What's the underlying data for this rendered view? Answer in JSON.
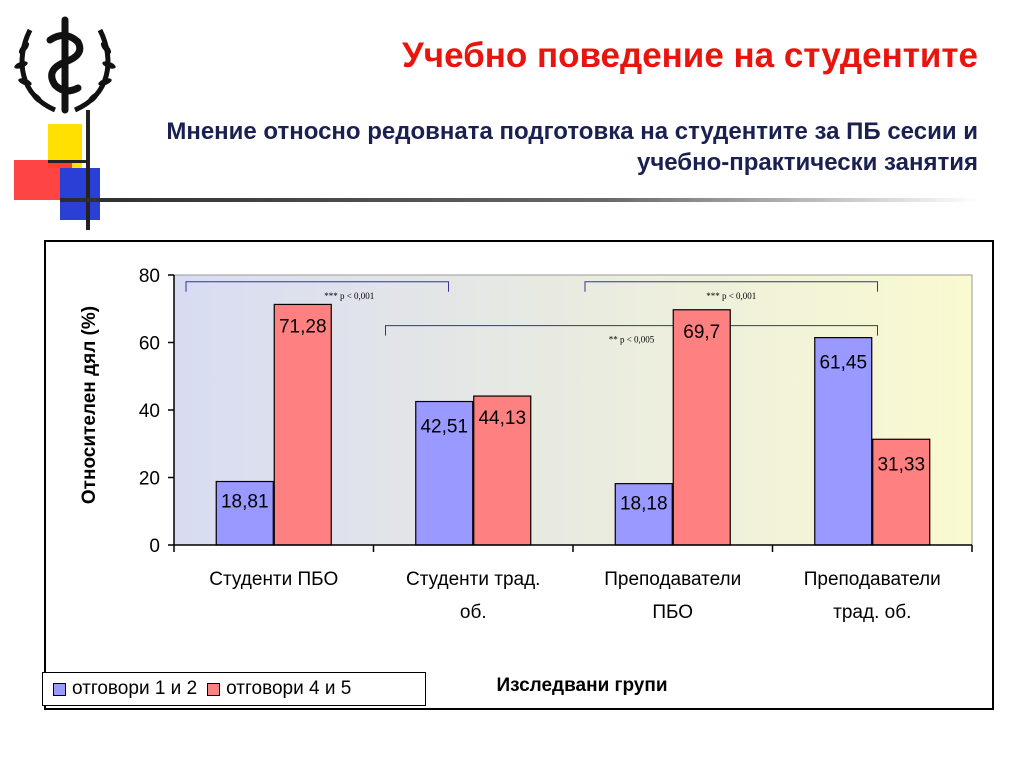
{
  "slide": {
    "title": "Учебно поведение на студентите",
    "subtitle": "Мнение относно редовната подготовка на студентите за ПБ сесии и учебно-практически занятия"
  },
  "colors": {
    "title": "#e8140e",
    "subtitle": "#1a2050",
    "series1": "#9999ff",
    "series2": "#ff8080",
    "plot_bg_left": "#d8dcf2",
    "plot_bg_right": "#fafad0",
    "bracket": "#333399"
  },
  "icons": {
    "logo": "caduceus-wreath-logo"
  },
  "chart_data": {
    "type": "bar",
    "title": "",
    "xlabel": "Изследвани групи",
    "ylabel": "Относителен дял (%)",
    "ylim": [
      0,
      80
    ],
    "yticks": [
      "0",
      "20",
      "40",
      "60",
      "80"
    ],
    "categories": [
      [
        "Студенти ПБО"
      ],
      [
        "Студенти трад.",
        "об."
      ],
      [
        "Преподаватели",
        "ПБО"
      ],
      [
        "Преподаватели",
        "трад. об."
      ]
    ],
    "series": [
      {
        "name": "отговори 1 и 2",
        "values": [
          18.81,
          42.51,
          18.18,
          61.45
        ],
        "labels": [
          "18,81",
          "42,51",
          "18,18",
          "61,45"
        ]
      },
      {
        "name": "отговори 4 и 5",
        "values": [
          71.28,
          44.13,
          69.7,
          31.33
        ],
        "labels": [
          "71,28",
          "44,13",
          "69,7",
          "31,33"
        ]
      }
    ],
    "legend": "bottom-left",
    "grid": false,
    "annotations": [
      {
        "text": "*** p < 0,001",
        "from": 0,
        "to": 1,
        "level": 78
      },
      {
        "text": "** p < 0,005",
        "from": 1,
        "to": 3,
        "level": 65
      },
      {
        "text": "*** p < 0,001",
        "from": 2,
        "to": 3,
        "level": 78
      }
    ]
  }
}
